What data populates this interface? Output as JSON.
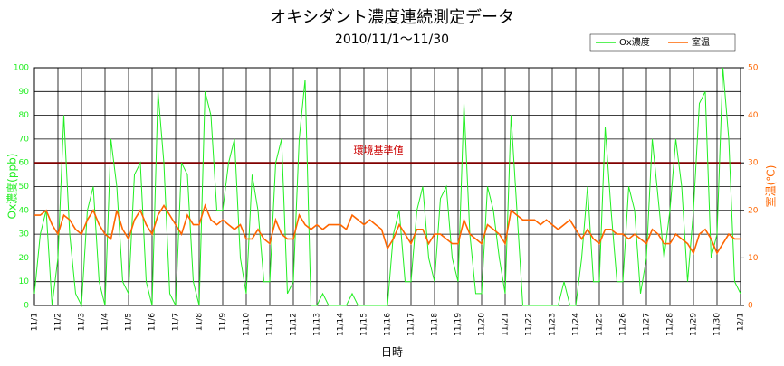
{
  "chart_data": {
    "type": "line",
    "title": "オキシダント濃度連続測定データ",
    "subtitle": "2010/11/1～11/30",
    "x_label": "日時",
    "y_label": "Ox濃度(ppb)",
    "y2_label": "室温(℃)",
    "x": [
      0,
      0.25,
      0.5,
      0.75,
      1,
      1.25,
      1.5,
      1.75,
      2,
      2.25,
      2.5,
      2.75,
      3,
      3.25,
      3.5,
      3.75,
      4,
      4.25,
      4.5,
      4.75,
      5,
      5.25,
      5.5,
      5.75,
      6,
      6.25,
      6.5,
      6.75,
      7,
      7.25,
      7.5,
      7.75,
      8,
      8.25,
      8.5,
      8.75,
      9,
      9.25,
      9.5,
      9.75,
      10,
      10.25,
      10.5,
      10.75,
      11,
      11.25,
      11.5,
      11.75,
      12,
      12.25,
      12.5,
      12.75,
      13,
      13.25,
      13.5,
      13.75,
      14,
      14.25,
      14.5,
      14.75,
      15,
      15.25,
      15.5,
      15.75,
      16,
      16.25,
      16.5,
      16.75,
      17,
      17.25,
      17.5,
      17.75,
      18,
      18.25,
      18.5,
      18.75,
      19,
      19.25,
      19.5,
      19.75,
      20,
      20.25,
      20.5,
      20.75,
      21,
      21.25,
      21.5,
      21.75,
      22,
      22.25,
      22.5,
      22.75,
      23,
      23.25,
      23.5,
      23.75,
      24,
      24.25,
      24.5,
      24.75,
      25,
      25.25,
      25.5,
      25.75,
      26,
      26.25,
      26.5,
      26.75,
      27,
      27.25,
      27.5,
      27.75,
      28,
      28.25,
      28.5,
      28.75,
      29,
      29.25,
      29.5,
      29.75,
      30
    ],
    "xlim": [
      0,
      30
    ],
    "xticks": [
      {
        "value": 0,
        "label": "11/1"
      },
      {
        "value": 1,
        "label": "11/2"
      },
      {
        "value": 2,
        "label": "11/3"
      },
      {
        "value": 3,
        "label": "11/4"
      },
      {
        "value": 4,
        "label": "11/5"
      },
      {
        "value": 5,
        "label": "11/6"
      },
      {
        "value": 6,
        "label": "11/7"
      },
      {
        "value": 7,
        "label": "11/8"
      },
      {
        "value": 8,
        "label": "11/9"
      },
      {
        "value": 9,
        "label": "11/10"
      },
      {
        "value": 10,
        "label": "11/11"
      },
      {
        "value": 11,
        "label": "11/12"
      },
      {
        "value": 12,
        "label": "11/13"
      },
      {
        "value": 13,
        "label": "11/14"
      },
      {
        "value": 14,
        "label": "11/15"
      },
      {
        "value": 15,
        "label": "11/16"
      },
      {
        "value": 16,
        "label": "11/17"
      },
      {
        "value": 17,
        "label": "11/18"
      },
      {
        "value": 18,
        "label": "11/19"
      },
      {
        "value": 19,
        "label": "11/20"
      },
      {
        "value": 20,
        "label": "11/21"
      },
      {
        "value": 21,
        "label": "11/22"
      },
      {
        "value": 22,
        "label": "11/23"
      },
      {
        "value": 23,
        "label": "11/24"
      },
      {
        "value": 24,
        "label": "11/25"
      },
      {
        "value": 25,
        "label": "11/26"
      },
      {
        "value": 26,
        "label": "11/27"
      },
      {
        "value": 27,
        "label": "11/28"
      },
      {
        "value": 28,
        "label": "11/29"
      },
      {
        "value": 29,
        "label": "11/30"
      },
      {
        "value": 30,
        "label": "12/1"
      }
    ],
    "ylim": [
      0,
      100
    ],
    "yticks": [
      0,
      10,
      20,
      30,
      40,
      50,
      60,
      70,
      80,
      90,
      100
    ],
    "y2lim": [
      0,
      50
    ],
    "y2ticks": [
      0,
      10,
      20,
      30,
      40,
      50
    ],
    "grid": true,
    "threshold": {
      "value": 60,
      "label": "環境基準値",
      "color": "#800000"
    },
    "series": [
      {
        "name": "Ox濃度",
        "color": "#22ee22",
        "values": [
          5,
          30,
          40,
          0,
          20,
          80,
          30,
          5,
          0,
          40,
          50,
          10,
          0,
          70,
          50,
          10,
          5,
          55,
          60,
          10,
          0,
          90,
          60,
          5,
          0,
          60,
          55,
          10,
          0,
          90,
          80,
          40,
          40,
          60,
          70,
          20,
          5,
          55,
          40,
          10,
          10,
          60,
          70,
          5,
          10,
          70,
          95,
          0,
          0,
          5,
          0,
          0,
          0,
          0,
          5,
          0,
          0,
          0,
          0,
          0,
          0,
          30,
          40,
          10,
          10,
          40,
          50,
          20,
          10,
          45,
          50,
          20,
          10,
          85,
          30,
          5,
          5,
          50,
          40,
          20,
          5,
          80,
          40,
          0,
          0,
          0,
          0,
          0,
          0,
          0,
          10,
          0,
          0,
          20,
          50,
          10,
          10,
          75,
          40,
          10,
          10,
          50,
          40,
          5,
          20,
          70,
          45,
          20,
          40,
          70,
          50,
          10,
          40,
          85,
          90,
          20,
          30,
          100,
          70,
          10,
          5
        ]
      },
      {
        "name": "室温",
        "color": "#ff6600",
        "axis": "y2",
        "values": [
          19,
          19,
          20,
          17,
          15,
          19,
          18,
          16,
          15,
          18,
          20,
          17,
          15,
          14,
          20,
          16,
          14,
          18,
          20,
          17,
          15,
          19,
          21,
          19,
          17,
          15,
          19,
          17,
          17,
          21,
          18,
          17,
          18,
          17,
          16,
          17,
          14,
          14,
          16,
          14,
          13,
          18,
          15,
          14,
          14,
          19,
          17,
          16,
          17,
          16,
          17,
          17,
          17,
          16,
          19,
          18,
          17,
          18,
          17,
          16,
          12,
          14,
          17,
          15,
          13,
          16,
          16,
          13,
          15,
          15,
          14,
          13,
          13,
          18,
          15,
          14,
          13,
          17,
          16,
          15,
          13,
          20,
          19,
          18,
          18,
          18,
          17,
          18,
          17,
          16,
          17,
          18,
          16,
          14,
          16,
          14,
          13,
          16,
          16,
          15,
          15,
          14,
          15,
          14,
          13,
          16,
          15,
          13,
          13,
          15,
          14,
          13,
          11,
          15,
          16,
          14,
          11,
          13,
          15,
          14,
          14
        ]
      }
    ]
  }
}
